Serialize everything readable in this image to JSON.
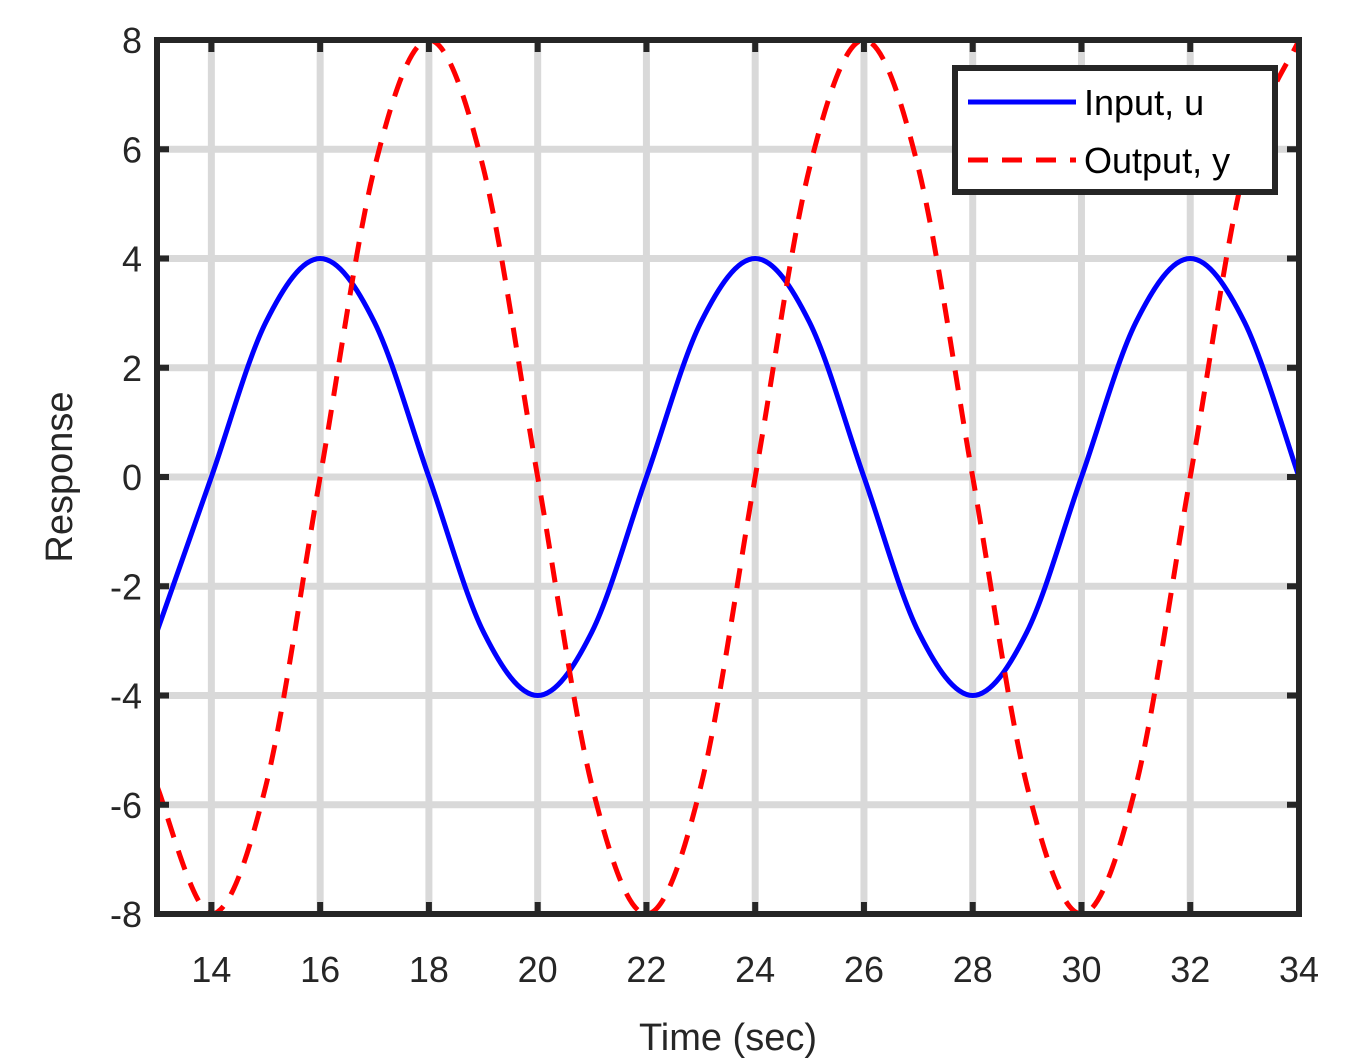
{
  "chart_data": {
    "type": "line",
    "title": "",
    "xlabel": "Time (sec)",
    "ylabel": "Response",
    "xlim": [
      13,
      34
    ],
    "ylim": [
      -8,
      8
    ],
    "xticks": [
      "14",
      "16",
      "18",
      "20",
      "22",
      "24",
      "26",
      "28",
      "30",
      "32",
      "34"
    ],
    "yticks": [
      "8",
      "6",
      "4",
      "2",
      "0",
      "-2",
      "-4",
      "-6",
      "-8"
    ],
    "grid": true,
    "legend_location": "top-right",
    "series": [
      {
        "name": "Input, u",
        "style": "solid",
        "color": "#0000ff",
        "x": [
          13,
          14,
          15,
          16,
          17,
          18,
          19,
          20,
          21,
          22,
          23,
          24,
          25,
          26,
          27,
          28,
          29,
          30,
          31,
          32,
          33,
          34
        ],
        "y": [
          -2.83,
          0,
          2.83,
          4,
          2.83,
          0,
          -2.83,
          -4,
          -2.83,
          0,
          2.83,
          4,
          2.83,
          0,
          -2.83,
          -4,
          -2.83,
          0,
          2.83,
          4,
          2.83,
          0
        ]
      },
      {
        "name": "Output, y",
        "style": "dashed",
        "color": "#ff0000",
        "x": [
          13,
          14,
          15,
          16,
          17,
          18,
          19,
          20,
          21,
          22,
          23,
          24,
          25,
          26,
          27,
          28,
          29,
          30,
          31,
          32,
          33,
          34
        ],
        "y": [
          -5.66,
          -8,
          -5.66,
          0,
          5.66,
          8,
          5.66,
          0,
          -5.66,
          -8,
          -5.66,
          0,
          5.66,
          8,
          5.66,
          0,
          -5.66,
          -8,
          -5.66,
          0,
          5.66,
          8
        ]
      }
    ]
  }
}
